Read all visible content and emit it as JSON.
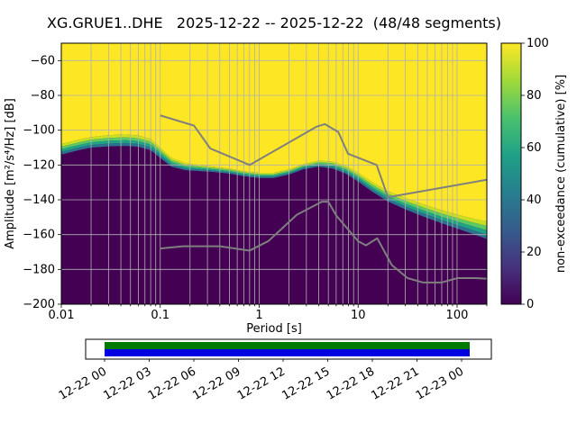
{
  "chart_data": {
    "type": "heatmap",
    "title": "XG.GRUE1..DHE   2025-12-22 -- 2025-12-22  (48/48 segments)",
    "xlabel": "Period [s]",
    "ylabel": "Amplitude [m²/s⁴/Hz] [dB]",
    "xscale": "log",
    "xlim": [
      0.01,
      200
    ],
    "ylim": [
      -200,
      -50
    ],
    "grid": true,
    "xticks": {
      "values": [
        0.01,
        0.1,
        1,
        10,
        100
      ],
      "labels": [
        "0.01",
        "0.1",
        "1",
        "10",
        "100"
      ]
    },
    "yticks": {
      "values": [
        -60,
        -80,
        -100,
        -120,
        -140,
        -160,
        -180,
        -200
      ],
      "labels": [
        "−60",
        "−80",
        "−100",
        "−120",
        "−140",
        "−160",
        "−180",
        "−200"
      ]
    },
    "colormap": {
      "name": "viridis",
      "stops": [
        "#440154",
        "#46327e",
        "#365c8d",
        "#277f8e",
        "#1fa187",
        "#4ac16d",
        "#a0da39",
        "#fde725"
      ]
    },
    "transition_colors": [
      "#c8e020",
      "#5ec962",
      "#20a486",
      "#2c728e"
    ],
    "colorbar": {
      "label": "non-exceedance (cumulative) [%]",
      "min": 0,
      "max": 100,
      "ticks": [
        0,
        20,
        40,
        60,
        80,
        100
      ]
    },
    "distribution_boundary": {
      "periods": [
        0.01,
        0.015,
        0.02,
        0.03,
        0.045,
        0.06,
        0.08,
        0.1,
        0.13,
        0.18,
        0.25,
        0.35,
        0.5,
        0.7,
        1.0,
        1.4,
        2.0,
        2.8,
        4.0,
        5.5,
        7.5,
        10,
        14,
        20,
        30,
        45,
        70,
        100,
        150,
        200
      ],
      "db": [
        -108,
        -105.5,
        -104,
        -102.8,
        -102.5,
        -103,
        -105,
        -110,
        -116,
        -119,
        -120,
        -121,
        -122,
        -123.5,
        -124.5,
        -124.5,
        -122.5,
        -119.5,
        -117.5,
        -118,
        -120.5,
        -124.5,
        -130,
        -135,
        -139,
        -142.5,
        -146,
        -148.5,
        -151,
        -152.5
      ],
      "spread_db": [
        6,
        6,
        6,
        6.5,
        6.5,
        6.5,
        6.5,
        6,
        5,
        4,
        3.5,
        3,
        3,
        3,
        3,
        3,
        3,
        3,
        3.5,
        4,
        4.5,
        5,
        5.5,
        6,
        6.5,
        7,
        7.5,
        8,
        9,
        10
      ]
    },
    "noise_models": {
      "color": "#7f7f7f",
      "nhnm": {
        "periods": [
          0.1,
          0.22,
          0.32,
          0.8,
          3.8,
          4.6,
          6.3,
          7.9,
          15.4,
          20,
          200
        ],
        "db": [
          -91.5,
          -97.4,
          -110.5,
          -120,
          -98,
          -96.5,
          -101,
          -113.5,
          -120,
          -138.5,
          -128.5
        ]
      },
      "nlnm": {
        "periods": [
          0.1,
          0.17,
          0.4,
          0.8,
          1.24,
          2.4,
          4.3,
          5,
          6,
          10,
          12,
          15.6,
          21.9,
          31.6,
          45,
          70,
          101,
          154,
          200
        ],
        "db": [
          -168,
          -166.7,
          -166.7,
          -169.2,
          -163.7,
          -148.6,
          -141.1,
          -141.1,
          -149,
          -163.8,
          -166.2,
          -162.1,
          -177.5,
          -185,
          -187.5,
          -187.5,
          -185,
          -185,
          -185.3
        ]
      }
    }
  },
  "timeline": {
    "labels": [
      "12-22 00",
      "12-22 03",
      "12-22 06",
      "12-22 09",
      "12-22 12",
      "12-22 15",
      "12-22 18",
      "12-22 21",
      "12-23 00"
    ],
    "coverage_colors": {
      "top": "#007a00",
      "bottom": "#0000e0"
    }
  }
}
